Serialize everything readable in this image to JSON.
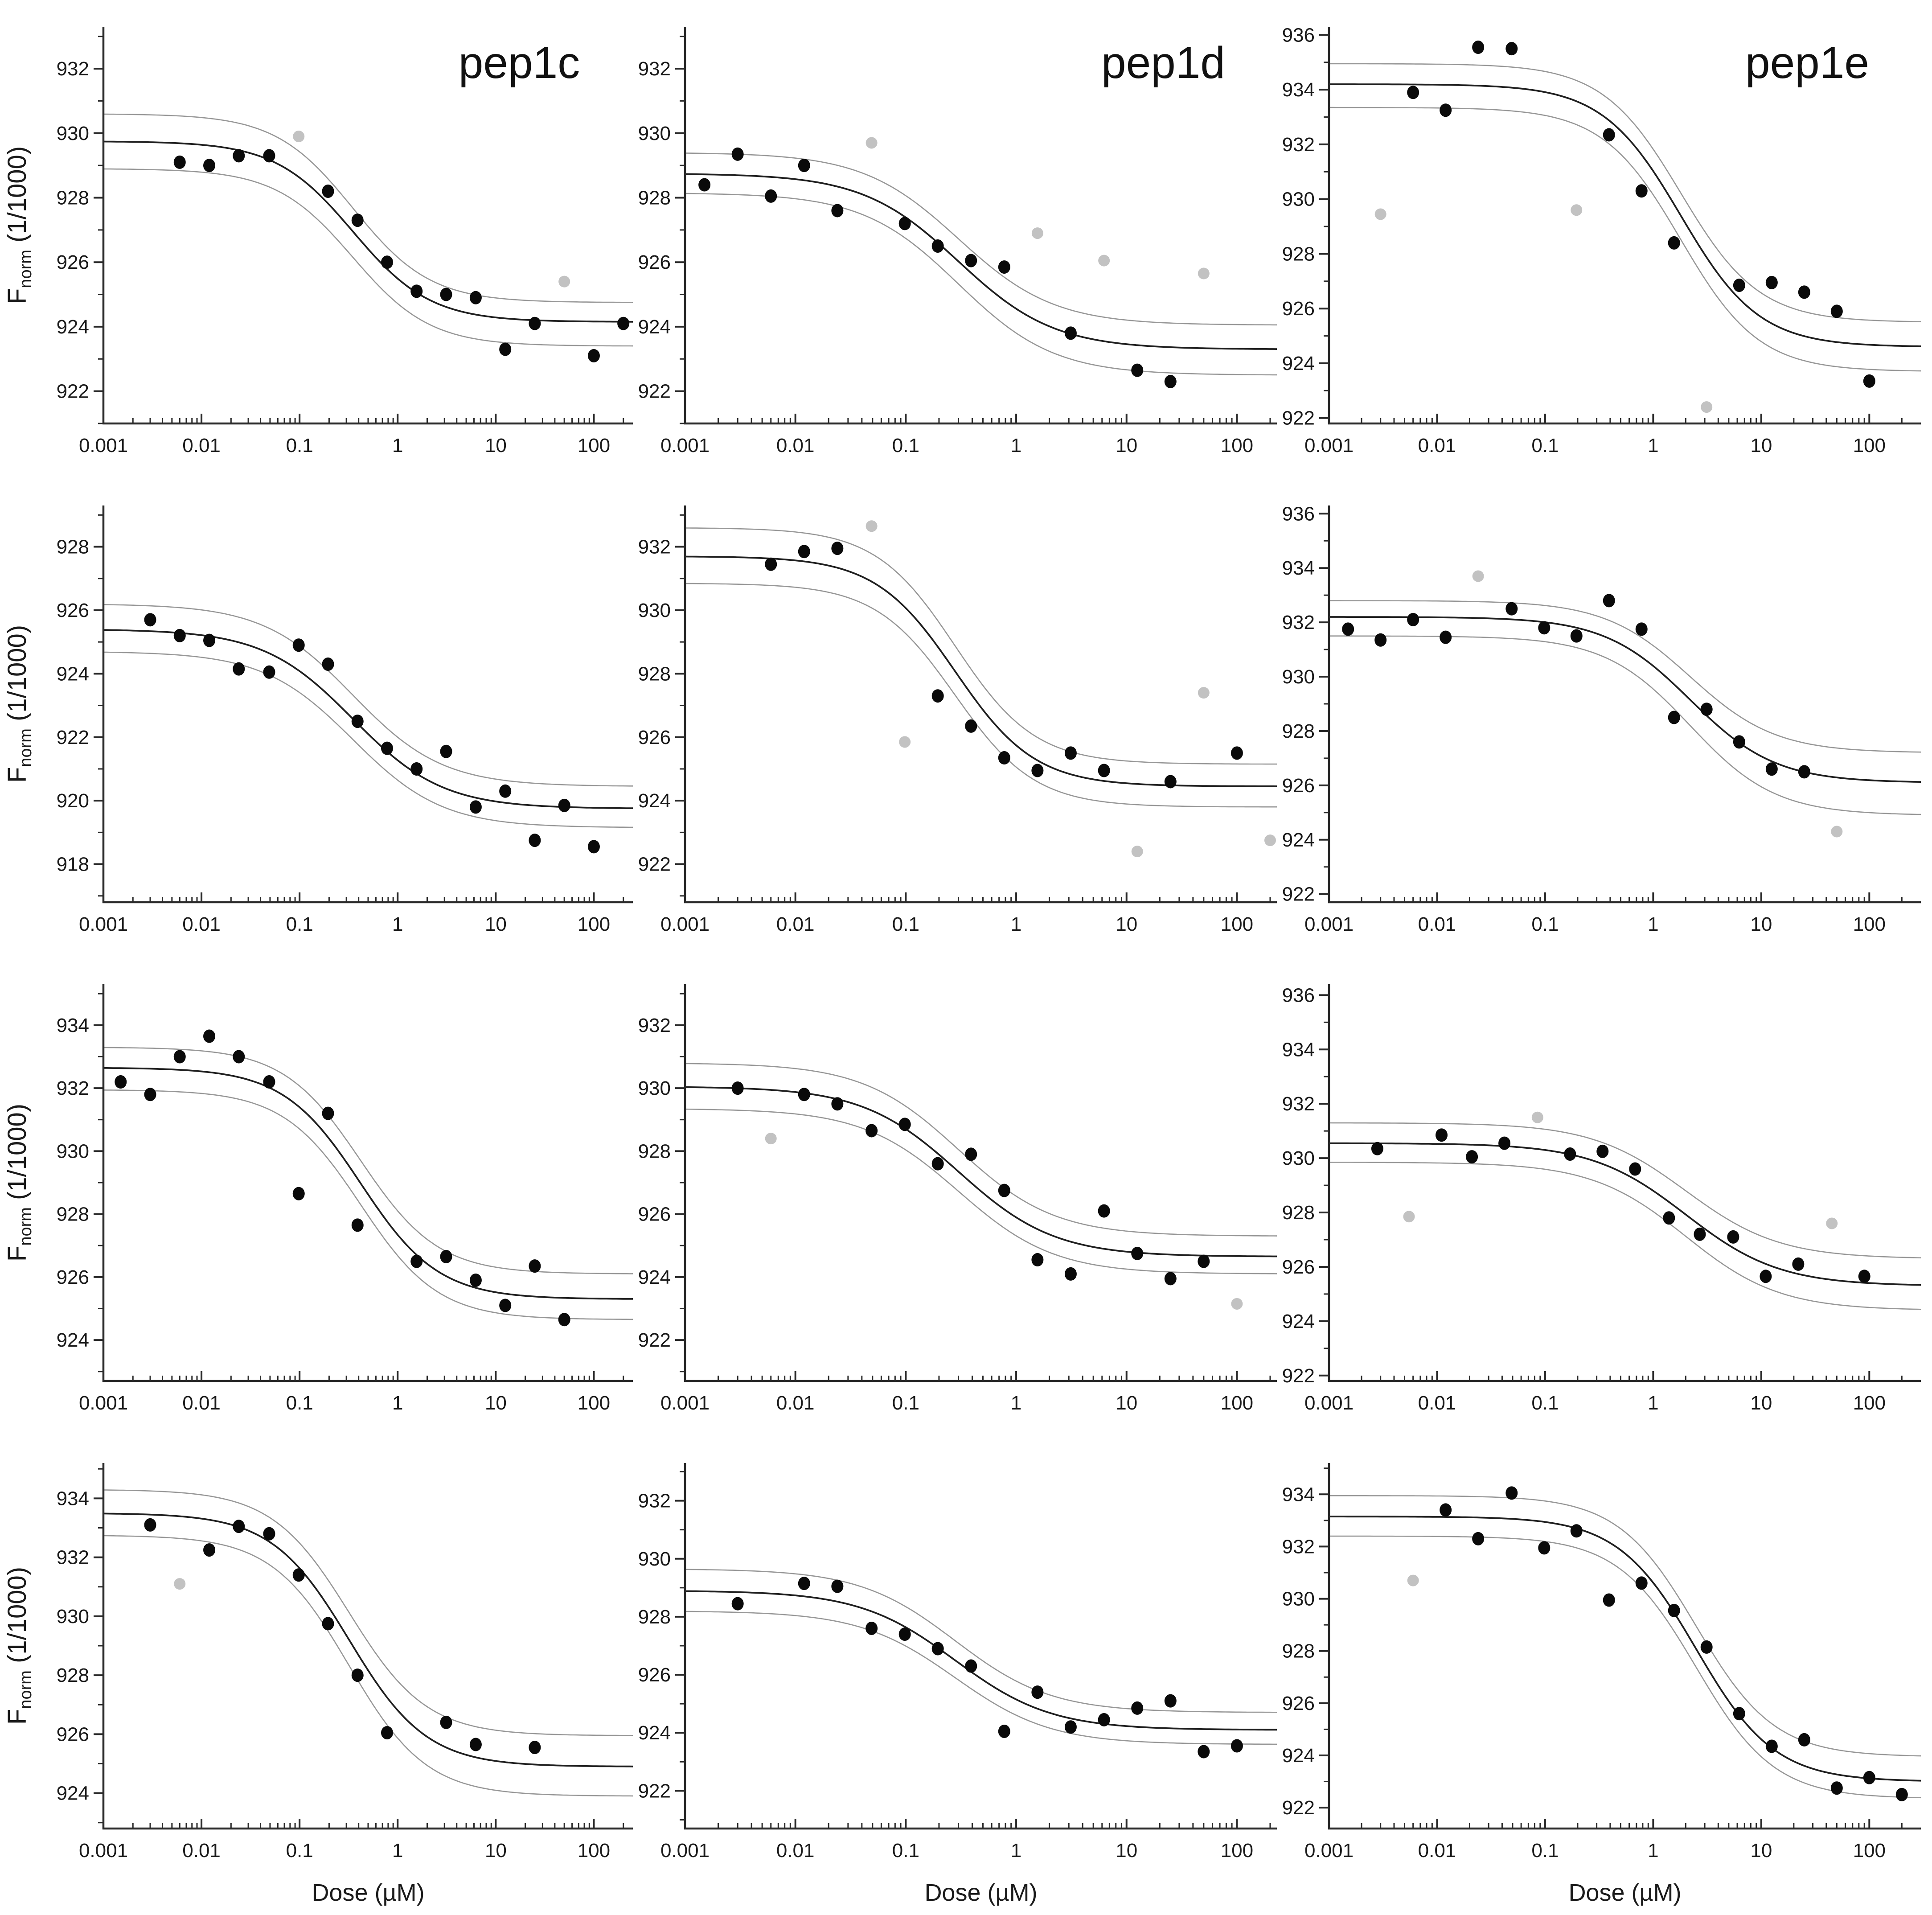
{
  "figure": {
    "background": "#ffffff",
    "column_titles": [
      "pep1c",
      "pep1d",
      "pep1e"
    ],
    "ylabel": {
      "prefix": "F",
      "sub": "norm",
      "suffix": " (1/1000)"
    },
    "xlabel": "Dose (µM)",
    "x_tick_labels": [
      "0.001",
      "0.01",
      "0.1",
      "1",
      "10",
      "100"
    ],
    "colors": {
      "point_black": "#0a0a0a",
      "point_gray": "#c2c2c2",
      "curve": "#1f1f1f",
      "band": "#979797",
      "axis": "#2a2a2a",
      "text": "#1a1a1a"
    }
  },
  "chart_data": [
    {
      "id": "r1c1",
      "row": 0,
      "col": 0,
      "type": "scatter",
      "title": "pep1c",
      "show_ylabel": true,
      "show_xlabel": false,
      "xlim": [
        0.001,
        250
      ],
      "ylim": [
        921.0,
        933.3
      ],
      "yticks": [
        922,
        924,
        926,
        928,
        930,
        932
      ],
      "points": [
        [
          0.006,
          929.1
        ],
        [
          0.012,
          929.0
        ],
        [
          0.024,
          929.3
        ],
        [
          0.049,
          929.3
        ],
        [
          0.195,
          928.2
        ],
        [
          0.39,
          927.3
        ],
        [
          0.78,
          926.0
        ],
        [
          1.56,
          925.1
        ],
        [
          3.12,
          925.0
        ],
        [
          6.25,
          924.9
        ],
        [
          12.5,
          923.3
        ],
        [
          25,
          924.1
        ],
        [
          100,
          923.1
        ],
        [
          200,
          924.1
        ]
      ],
      "outliers": [
        [
          0.098,
          929.9
        ],
        [
          50,
          925.4
        ]
      ],
      "fit": {
        "top": 929.75,
        "bottom": 924.15,
        "ec50": 0.35,
        "hill": 1.1
      },
      "band_upper": {
        "top": 930.6,
        "bottom": 924.75
      },
      "band_lower": {
        "top": 928.9,
        "bottom": 923.4
      }
    },
    {
      "id": "r1c2",
      "row": 0,
      "col": 1,
      "type": "scatter",
      "title": "pep1d",
      "show_ylabel": false,
      "show_xlabel": false,
      "xlim": [
        0.001,
        230
      ],
      "ylim": [
        921.0,
        933.3
      ],
      "yticks": [
        922,
        924,
        926,
        928,
        930,
        932
      ],
      "points": [
        [
          0.0015,
          928.4
        ],
        [
          0.003,
          929.35
        ],
        [
          0.006,
          928.05
        ],
        [
          0.012,
          929.0
        ],
        [
          0.024,
          927.6
        ],
        [
          0.098,
          927.2
        ],
        [
          0.195,
          926.5
        ],
        [
          0.39,
          926.05
        ],
        [
          0.78,
          925.85
        ],
        [
          3.12,
          923.8
        ],
        [
          12.5,
          922.65
        ],
        [
          25,
          922.3
        ]
      ],
      "outliers": [
        [
          0.049,
          929.7
        ],
        [
          1.56,
          926.9
        ],
        [
          6.25,
          926.05
        ],
        [
          50,
          925.65
        ]
      ],
      "fit": {
        "top": 928.75,
        "bottom": 923.3,
        "ec50": 0.3,
        "hill": 1.0
      },
      "band_upper": {
        "top": 929.4,
        "bottom": 924.05
      },
      "band_lower": {
        "top": 928.15,
        "bottom": 922.5
      }
    },
    {
      "id": "r1c3",
      "row": 0,
      "col": 2,
      "type": "scatter",
      "title": "pep1e",
      "show_ylabel": false,
      "show_xlabel": false,
      "xlim": [
        0.001,
        300
      ],
      "ylim": [
        921.8,
        936.3
      ],
      "yticks": [
        922,
        924,
        926,
        928,
        930,
        932,
        934,
        936
      ],
      "points": [
        [
          0.006,
          933.9
        ],
        [
          0.012,
          933.25
        ],
        [
          0.024,
          935.55
        ],
        [
          0.049,
          935.5
        ],
        [
          0.39,
          932.35
        ],
        [
          0.78,
          930.3
        ],
        [
          1.56,
          928.4
        ],
        [
          6.25,
          926.85
        ],
        [
          12.5,
          926.95
        ],
        [
          25,
          926.6
        ],
        [
          50,
          925.9
        ],
        [
          100,
          923.35
        ]
      ],
      "outliers": [
        [
          0.003,
          929.45
        ],
        [
          0.195,
          929.6
        ],
        [
          3.12,
          922.4
        ]
      ],
      "fit": {
        "top": 934.2,
        "bottom": 924.6,
        "ec50": 1.8,
        "hill": 1.2
      },
      "band_upper": {
        "top": 934.95,
        "bottom": 925.5
      },
      "band_lower": {
        "top": 933.35,
        "bottom": 923.7
      }
    },
    {
      "id": "r2c1",
      "row": 1,
      "col": 0,
      "type": "scatter",
      "title": null,
      "show_ylabel": true,
      "show_xlabel": false,
      "xlim": [
        0.001,
        250
      ],
      "ylim": [
        916.8,
        929.3
      ],
      "yticks": [
        918,
        920,
        922,
        924,
        926,
        928
      ],
      "points": [
        [
          0.003,
          925.7
        ],
        [
          0.006,
          925.2
        ],
        [
          0.012,
          925.05
        ],
        [
          0.024,
          924.15
        ],
        [
          0.049,
          924.05
        ],
        [
          0.098,
          924.9
        ],
        [
          0.195,
          924.3
        ],
        [
          0.39,
          922.5
        ],
        [
          0.78,
          921.65
        ],
        [
          1.56,
          921.0
        ],
        [
          3.12,
          921.55
        ],
        [
          6.25,
          919.8
        ],
        [
          12.5,
          920.3
        ],
        [
          25,
          918.75
        ],
        [
          50,
          919.85
        ],
        [
          100,
          918.55
        ]
      ],
      "outliers": [],
      "fit": {
        "top": 925.4,
        "bottom": 919.75,
        "ec50": 0.35,
        "hill": 0.95
      },
      "band_upper": {
        "top": 926.2,
        "bottom": 920.45
      },
      "band_lower": {
        "top": 924.7,
        "bottom": 919.15
      }
    },
    {
      "id": "r2c2",
      "row": 1,
      "col": 1,
      "type": "scatter",
      "title": null,
      "show_ylabel": false,
      "show_xlabel": false,
      "xlim": [
        0.001,
        230
      ],
      "ylim": [
        920.8,
        933.3
      ],
      "yticks": [
        922,
        924,
        926,
        928,
        930,
        932
      ],
      "points": [
        [
          0.006,
          931.45
        ],
        [
          0.012,
          931.85
        ],
        [
          0.024,
          931.95
        ],
        [
          0.195,
          927.3
        ],
        [
          0.39,
          926.35
        ],
        [
          0.78,
          925.35
        ],
        [
          1.56,
          924.95
        ],
        [
          3.12,
          925.5
        ],
        [
          6.25,
          924.95
        ],
        [
          25,
          924.6
        ],
        [
          100,
          925.5
        ]
      ],
      "outliers": [
        [
          0.049,
          932.65
        ],
        [
          0.098,
          925.85
        ],
        [
          12.5,
          922.4
        ],
        [
          50,
          927.4
        ],
        [
          200,
          922.75
        ]
      ],
      "fit": {
        "top": 931.7,
        "bottom": 924.45,
        "ec50": 0.28,
        "hill": 1.2
      },
      "band_upper": {
        "top": 932.6,
        "bottom": 925.15
      },
      "band_lower": {
        "top": 930.85,
        "bottom": 923.8
      }
    },
    {
      "id": "r2c3",
      "row": 1,
      "col": 2,
      "type": "scatter",
      "title": null,
      "show_ylabel": false,
      "show_xlabel": false,
      "xlim": [
        0.001,
        300
      ],
      "ylim": [
        921.7,
        936.3
      ],
      "yticks": [
        922,
        924,
        926,
        928,
        930,
        932,
        934,
        936
      ],
      "points": [
        [
          0.0015,
          931.75
        ],
        [
          0.003,
          931.35
        ],
        [
          0.006,
          932.1
        ],
        [
          0.012,
          931.45
        ],
        [
          0.049,
          932.5
        ],
        [
          0.098,
          931.8
        ],
        [
          0.195,
          931.5
        ],
        [
          0.39,
          932.8
        ],
        [
          0.78,
          931.75
        ],
        [
          1.56,
          928.5
        ],
        [
          3.12,
          928.8
        ],
        [
          6.25,
          927.6
        ],
        [
          12.5,
          926.6
        ],
        [
          25,
          926.5
        ]
      ],
      "outliers": [
        [
          0.024,
          933.7
        ],
        [
          50,
          924.3
        ]
      ],
      "fit": {
        "top": 932.2,
        "bottom": 926.1,
        "ec50": 2.2,
        "hill": 1.1
      },
      "band_upper": {
        "top": 932.8,
        "bottom": 927.2
      },
      "band_lower": {
        "top": 931.5,
        "bottom": 924.9
      }
    },
    {
      "id": "r3c1",
      "row": 2,
      "col": 0,
      "type": "scatter",
      "title": null,
      "show_ylabel": true,
      "show_xlabel": false,
      "xlim": [
        0.001,
        250
      ],
      "ylim": [
        922.7,
        935.3
      ],
      "yticks": [
        924,
        926,
        928,
        930,
        932,
        934
      ],
      "points": [
        [
          0.0015,
          932.2
        ],
        [
          0.003,
          931.8
        ],
        [
          0.006,
          933.0
        ],
        [
          0.012,
          933.65
        ],
        [
          0.024,
          933.0
        ],
        [
          0.049,
          932.2
        ],
        [
          0.098,
          928.65
        ],
        [
          0.195,
          931.2
        ],
        [
          0.39,
          927.65
        ],
        [
          1.56,
          926.5
        ],
        [
          3.12,
          926.65
        ],
        [
          6.25,
          925.9
        ],
        [
          12.5,
          925.1
        ],
        [
          25,
          926.35
        ],
        [
          50,
          924.65
        ]
      ],
      "outliers": [],
      "fit": {
        "top": 932.65,
        "bottom": 925.3,
        "ec50": 0.42,
        "hill": 1.1
      },
      "band_upper": {
        "top": 933.3,
        "bottom": 926.1
      },
      "band_lower": {
        "top": 931.95,
        "bottom": 924.65
      }
    },
    {
      "id": "r3c2",
      "row": 2,
      "col": 1,
      "type": "scatter",
      "title": null,
      "show_ylabel": false,
      "show_xlabel": false,
      "xlim": [
        0.001,
        230
      ],
      "ylim": [
        920.7,
        933.3
      ],
      "yticks": [
        922,
        924,
        926,
        928,
        930,
        932
      ],
      "points": [
        [
          0.003,
          930.0
        ],
        [
          0.012,
          929.8
        ],
        [
          0.024,
          929.5
        ],
        [
          0.049,
          928.65
        ],
        [
          0.098,
          928.85
        ],
        [
          0.195,
          927.6
        ],
        [
          0.39,
          927.9
        ],
        [
          0.78,
          926.75
        ],
        [
          1.56,
          924.55
        ],
        [
          3.12,
          924.1
        ],
        [
          6.25,
          926.1
        ],
        [
          12.5,
          924.75
        ],
        [
          25,
          923.95
        ],
        [
          50,
          924.5
        ]
      ],
      "outliers": [
        [
          0.006,
          928.4
        ],
        [
          100,
          923.15
        ]
      ],
      "fit": {
        "top": 930.05,
        "bottom": 924.65,
        "ec50": 0.3,
        "hill": 1.0
      },
      "band_upper": {
        "top": 930.8,
        "bottom": 925.3
      },
      "band_lower": {
        "top": 929.35,
        "bottom": 924.1
      }
    },
    {
      "id": "r3c3",
      "row": 2,
      "col": 2,
      "type": "scatter",
      "title": null,
      "show_ylabel": false,
      "show_xlabel": false,
      "xlim": [
        0.001,
        300
      ],
      "ylim": [
        921.8,
        936.4
      ],
      "yticks": [
        922,
        924,
        926,
        928,
        930,
        932,
        934,
        936
      ],
      "points": [
        [
          0.0028,
          930.35
        ],
        [
          0.011,
          930.85
        ],
        [
          0.021,
          930.05
        ],
        [
          0.042,
          930.55
        ],
        [
          0.17,
          930.15
        ],
        [
          0.34,
          930.25
        ],
        [
          0.68,
          929.6
        ],
        [
          1.4,
          927.8
        ],
        [
          2.7,
          927.2
        ],
        [
          5.5,
          927.1
        ],
        [
          11,
          925.65
        ],
        [
          22,
          926.1
        ],
        [
          90,
          925.65
        ]
      ],
      "outliers": [
        [
          0.0055,
          927.85
        ],
        [
          0.085,
          931.5
        ],
        [
          45,
          927.6
        ]
      ],
      "fit": {
        "top": 930.55,
        "bottom": 925.3,
        "ec50": 2.0,
        "hill": 1.0
      },
      "band_upper": {
        "top": 931.3,
        "bottom": 926.3
      },
      "band_lower": {
        "top": 929.85,
        "bottom": 924.4
      }
    },
    {
      "id": "r4c1",
      "row": 3,
      "col": 0,
      "type": "scatter",
      "title": null,
      "show_ylabel": true,
      "show_xlabel": true,
      "xlim": [
        0.001,
        250
      ],
      "ylim": [
        922.8,
        935.2
      ],
      "yticks": [
        924,
        926,
        928,
        930,
        932,
        934
      ],
      "points": [
        [
          0.003,
          933.1
        ],
        [
          0.012,
          932.25
        ],
        [
          0.024,
          933.05
        ],
        [
          0.049,
          932.8
        ],
        [
          0.098,
          931.4
        ],
        [
          0.195,
          929.75
        ],
        [
          0.39,
          928.0
        ],
        [
          0.78,
          926.05
        ],
        [
          3.12,
          926.4
        ],
        [
          6.25,
          925.65
        ],
        [
          25,
          925.55
        ]
      ],
      "outliers": [
        [
          0.006,
          931.1
        ]
      ],
      "fit": {
        "top": 933.5,
        "bottom": 924.9,
        "ec50": 0.32,
        "hill": 1.1
      },
      "band_upper": {
        "top": 934.3,
        "bottom": 925.95
      },
      "band_lower": {
        "top": 932.75,
        "bottom": 923.9
      }
    },
    {
      "id": "r4c2",
      "row": 3,
      "col": 1,
      "type": "scatter",
      "title": null,
      "show_ylabel": false,
      "show_xlabel": true,
      "xlim": [
        0.001,
        230
      ],
      "ylim": [
        920.7,
        933.3
      ],
      "yticks": [
        922,
        924,
        926,
        928,
        930,
        932
      ],
      "points": [
        [
          0.003,
          928.45
        ],
        [
          0.012,
          929.15
        ],
        [
          0.024,
          929.05
        ],
        [
          0.049,
          927.6
        ],
        [
          0.098,
          927.4
        ],
        [
          0.195,
          926.9
        ],
        [
          0.39,
          926.3
        ],
        [
          0.78,
          924.05
        ],
        [
          1.56,
          925.4
        ],
        [
          3.12,
          924.2
        ],
        [
          6.25,
          924.45
        ],
        [
          12.5,
          924.85
        ],
        [
          25,
          925.1
        ],
        [
          50,
          923.35
        ],
        [
          100,
          923.55
        ]
      ],
      "outliers": [],
      "fit": {
        "top": 928.9,
        "bottom": 924.1,
        "ec50": 0.28,
        "hill": 1.0
      },
      "band_upper": {
        "top": 929.65,
        "bottom": 924.7
      },
      "band_lower": {
        "top": 928.2,
        "bottom": 923.6
      }
    },
    {
      "id": "r4c3",
      "row": 3,
      "col": 2,
      "type": "scatter",
      "title": null,
      "show_ylabel": false,
      "show_xlabel": true,
      "xlim": [
        0.001,
        300
      ],
      "ylim": [
        921.2,
        935.2
      ],
      "yticks": [
        922,
        924,
        926,
        928,
        930,
        932,
        934
      ],
      "points": [
        [
          0.012,
          933.4
        ],
        [
          0.024,
          932.3
        ],
        [
          0.049,
          934.05
        ],
        [
          0.098,
          931.95
        ],
        [
          0.195,
          932.6
        ],
        [
          0.39,
          929.95
        ],
        [
          0.78,
          930.6
        ],
        [
          1.56,
          929.55
        ],
        [
          3.12,
          928.15
        ],
        [
          6.25,
          925.6
        ],
        [
          12.5,
          924.35
        ],
        [
          25,
          924.6
        ],
        [
          50,
          922.75
        ],
        [
          100,
          923.15
        ],
        [
          200,
          922.5
        ]
      ],
      "outliers": [
        [
          0.006,
          930.7
        ]
      ],
      "fit": {
        "top": 933.15,
        "bottom": 923.0,
        "ec50": 2.5,
        "hill": 1.2
      },
      "band_upper": {
        "top": 933.95,
        "bottom": 923.95
      },
      "band_lower": {
        "top": 932.4,
        "bottom": 922.35
      }
    }
  ]
}
